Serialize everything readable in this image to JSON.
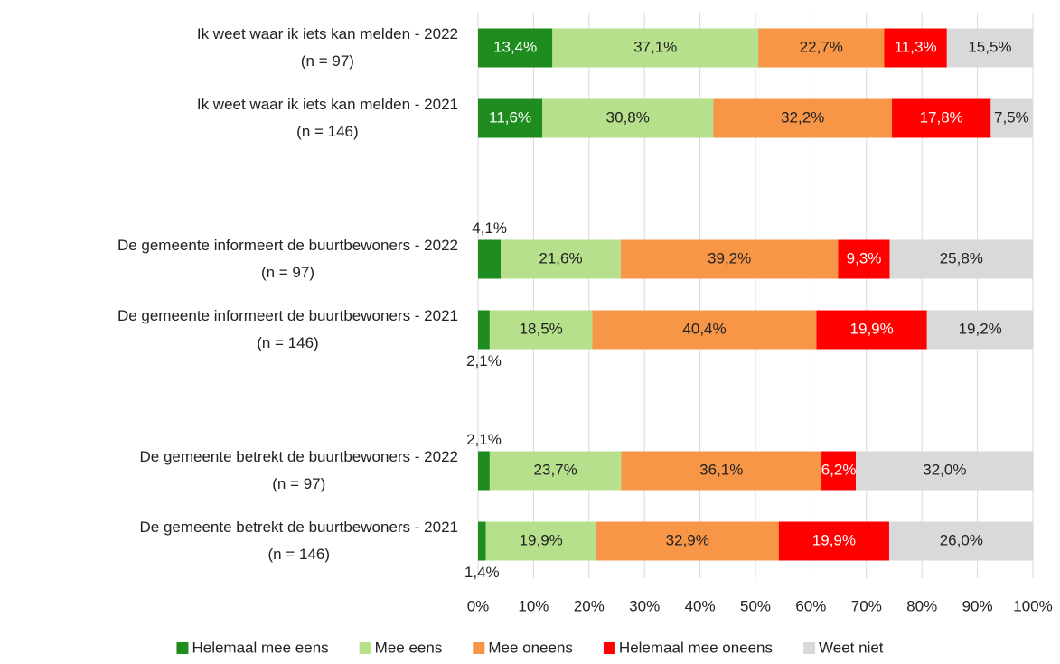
{
  "chart_data": {
    "type": "stacked-bar-horizontal",
    "categories": [
      "Ik weet waar ik iets kan melden - 2022\n(n = 97)",
      "Ik weet waar ik iets kan melden - 2021\n(n = 146)",
      null,
      "De gemeente informeert de buurtbewoners - 2022\n(n = 97)",
      "De gemeente informeert de buurtbewoners - 2021\n(n = 146)",
      null,
      "De gemeente betrekt de buurtbewoners - 2022\n(n = 97)",
      "De gemeente betrekt de buurtbewoners - 2021\n(n = 146)"
    ],
    "series": [
      {
        "name": "Helemaal mee eens",
        "color": "#1e8c1e",
        "values": [
          13.4,
          11.6,
          null,
          4.1,
          2.1,
          null,
          2.1,
          1.4
        ],
        "value_labels": [
          "13,4%",
          "11,6%",
          null,
          "4,1%",
          "2,1%",
          null,
          "2,1%",
          "1,4%"
        ]
      },
      {
        "name": "Mee eens",
        "color": "#b6e08c",
        "values": [
          37.1,
          30.8,
          null,
          21.6,
          18.5,
          null,
          23.7,
          19.9
        ],
        "value_labels": [
          "37,1%",
          "30,8%",
          null,
          "21,6%",
          "18,5%",
          null,
          "23,7%",
          "19,9%"
        ]
      },
      {
        "name": "Mee oneens",
        "color": "#f79646",
        "values": [
          22.7,
          32.2,
          null,
          39.2,
          40.4,
          null,
          36.1,
          32.9
        ],
        "value_labels": [
          "22,7%",
          "32,2%",
          null,
          "39,2%",
          "40,4%",
          null,
          "36,1%",
          "32,9%"
        ]
      },
      {
        "name": "Helemaal mee oneens",
        "color": "#ff0000",
        "values": [
          11.3,
          17.8,
          null,
          9.3,
          19.9,
          null,
          6.2,
          19.9
        ],
        "value_labels": [
          "11,3%",
          "17,8%",
          null,
          "9,3%",
          "19,9%",
          null,
          "6,2%",
          "19,9%"
        ]
      },
      {
        "name": "Weet niet",
        "color": "#d9d9d9",
        "values": [
          15.5,
          7.5,
          null,
          25.8,
          19.2,
          null,
          32.0,
          26.0
        ],
        "value_labels": [
          "15,5%",
          "7,5%",
          null,
          "25,8%",
          "19,2%",
          null,
          "32,0%",
          "26,0%"
        ]
      }
    ],
    "xlim": [
      0,
      100
    ],
    "xticks": [
      {
        "value": 0,
        "label": "0%"
      },
      {
        "value": 10,
        "label": "10%"
      },
      {
        "value": 20,
        "label": "20%"
      },
      {
        "value": 30,
        "label": "30%"
      },
      {
        "value": 40,
        "label": "40%"
      },
      {
        "value": 50,
        "label": "50%"
      },
      {
        "value": 60,
        "label": "60%"
      },
      {
        "value": 70,
        "label": "70%"
      },
      {
        "value": 80,
        "label": "80%"
      },
      {
        "value": 90,
        "label": "90%"
      },
      {
        "value": 100,
        "label": "100%"
      }
    ],
    "grid": true,
    "legend": "bottom"
  }
}
